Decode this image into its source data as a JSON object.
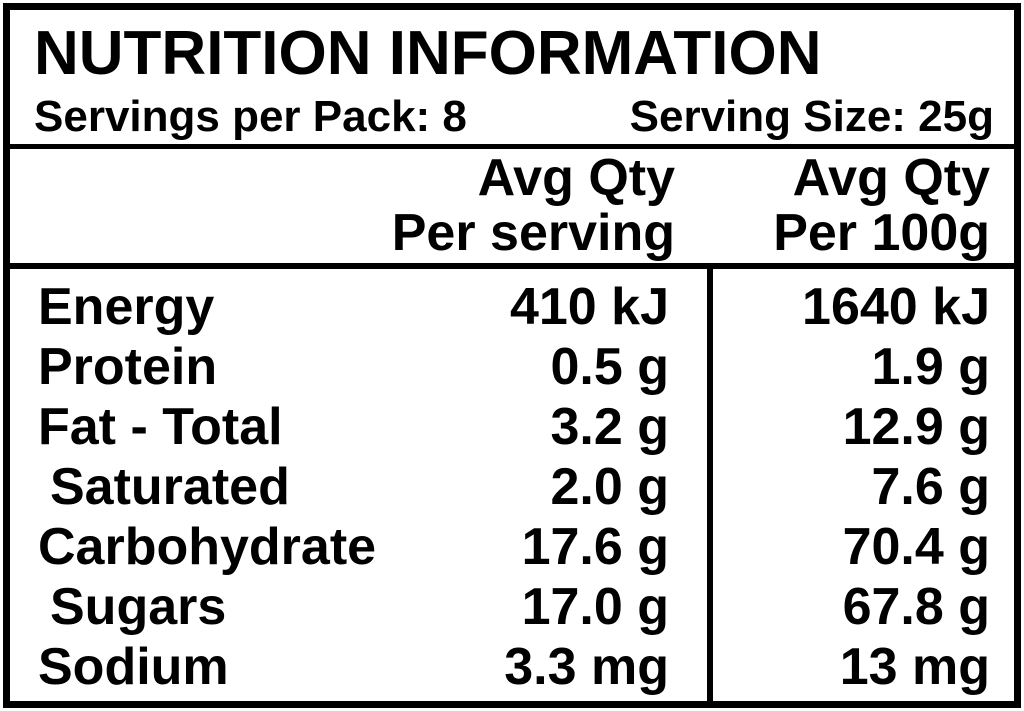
{
  "title": "NUTRITION INFORMATION",
  "pack_info": {
    "servings_per_pack": "Servings per Pack: 8",
    "serving_size": "Serving Size: 25g"
  },
  "columns": {
    "per_serving": {
      "line1": "Avg Qty",
      "line2": "Per serving"
    },
    "per_100g": {
      "line1": "Avg Qty",
      "line2": "Per 100g"
    }
  },
  "rows": [
    {
      "nutrient": "Energy",
      "per_serving": "410 kJ",
      "per_100g": "1640 kJ",
      "indent": false
    },
    {
      "nutrient": "Protein",
      "per_serving": "0.5 g",
      "per_100g": "1.9 g",
      "indent": false
    },
    {
      "nutrient": "Fat - Total",
      "per_serving": "3.2 g",
      "per_100g": "12.9 g",
      "indent": false
    },
    {
      "nutrient": "Saturated",
      "per_serving": "2.0 g",
      "per_100g": "7.6 g",
      "indent": true
    },
    {
      "nutrient": "Carbohydrate",
      "per_serving": "17.6 g",
      "per_100g": "70.4 g",
      "indent": false
    },
    {
      "nutrient": "Sugars",
      "per_serving": "17.0 g",
      "per_100g": "67.8 g",
      "indent": true
    },
    {
      "nutrient": "Sodium",
      "per_serving": "3.3 mg",
      "per_100g": "13 mg",
      "indent": false
    }
  ],
  "colors": {
    "text": "#000000",
    "border": "#000000",
    "background": "#ffffff"
  }
}
